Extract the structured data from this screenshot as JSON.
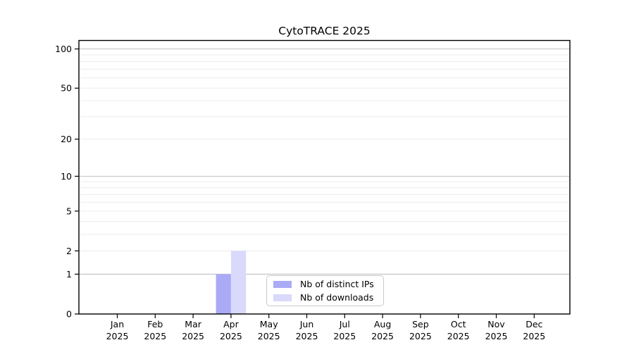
{
  "chart_data": {
    "type": "bar",
    "title": "CytoTRACE 2025",
    "categories": [
      "Jan",
      "Feb",
      "Mar",
      "Apr",
      "May",
      "Jun",
      "Jul",
      "Aug",
      "Sep",
      "Oct",
      "Nov",
      "Dec"
    ],
    "year_label": "2025",
    "series": [
      {
        "name": "Nb of distinct IPs",
        "color": "#aaaaf7",
        "values": [
          0,
          0,
          0,
          1,
          0,
          0,
          0,
          0,
          0,
          0,
          0,
          0
        ]
      },
      {
        "name": "Nb of downloads",
        "color": "#d9d9fb",
        "values": [
          0,
          0,
          0,
          2,
          0,
          0,
          0,
          0,
          0,
          0,
          0,
          0
        ]
      }
    ],
    "y_scale": "log1p",
    "y_ticks": [
      0,
      1,
      2,
      5,
      10,
      20,
      50,
      100
    ],
    "y_gridlines_major": [
      1,
      10,
      100
    ],
    "y_gridlines_minor": [
      2,
      3,
      4,
      5,
      6,
      7,
      8,
      9,
      20,
      30,
      40,
      50,
      60,
      70,
      80,
      90
    ],
    "ylim": [
      0,
      115
    ],
    "xlabel": "",
    "ylabel": "",
    "grid": "horizontal-only",
    "legend_position": "lower-center-inside"
  },
  "colors": {
    "background": "#ffffff",
    "spine": "#000000",
    "tick_text": "#000000",
    "gridline_major": "#c0c0c0",
    "gridline_minor": "#ececec",
    "legend_border": "#c9c9c9"
  }
}
